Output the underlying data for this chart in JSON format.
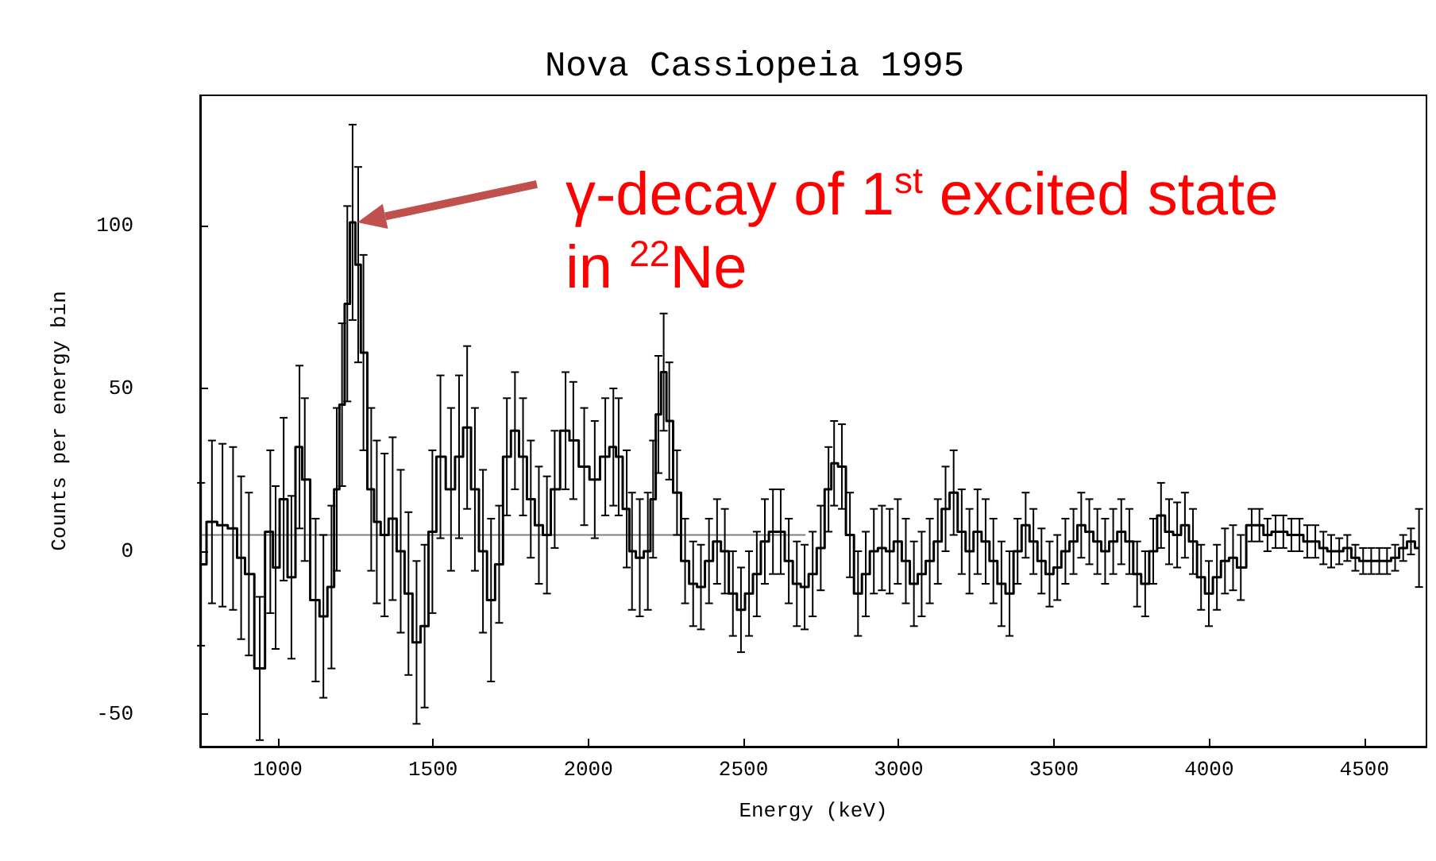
{
  "chart_data": {
    "type": "step",
    "title": "Nova Cassiopeia 1995",
    "xlabel": "Energy (keV)",
    "ylabel": "Counts per energy bin",
    "annotations": [
      "γ-decay of 1$^{st}$ excited state in $^{22}$Ne"
    ],
    "xlim": [
      750,
      4700
    ],
    "ylim": [
      -60,
      140
    ],
    "xticks": [
      1000,
      1500,
      2000,
      2500,
      3000,
      3500,
      4000,
      4500
    ],
    "yticks": [
      -50,
      0,
      50,
      100
    ],
    "marker": "none",
    "series": [
      {
        "color": "#000000",
        "x": [
          753,
          788,
          822,
          856,
          882,
          907,
          942,
          976,
          993,
          1019,
          1044,
          1070,
          1087,
          1122,
          1147,
          1173,
          1190,
          1207,
          1224,
          1241,
          1259,
          1276,
          1301,
          1319,
          1344,
          1370,
          1396,
          1421,
          1447,
          1473,
          1498,
          1524,
          1558,
          1584,
          1610,
          1635,
          1661,
          1687,
          1713,
          1738,
          1764,
          1790,
          1815,
          1841,
          1867,
          1892,
          1927,
          1952,
          1987,
          2021,
          2055,
          2081,
          2098,
          2124,
          2141,
          2166,
          2192,
          2209,
          2226,
          2243,
          2261,
          2286,
          2312,
          2338,
          2363,
          2389,
          2415,
          2440,
          2466,
          2492,
          2518,
          2543,
          2569,
          2595,
          2620,
          2646,
          2672,
          2697,
          2723,
          2749,
          2774,
          2792,
          2817,
          2843,
          2869,
          2894,
          2920,
          2946,
          2971,
          2997,
          3023,
          3049,
          3074,
          3100,
          3126,
          3151,
          3177,
          3203,
          3228,
          3254,
          3280,
          3305,
          3331,
          3357,
          3383,
          3409,
          3434,
          3460,
          3486,
          3511,
          3537,
          3563,
          3588,
          3614,
          3640,
          3665,
          3691,
          3717,
          3743,
          3768,
          3794,
          3820,
          3845,
          3871,
          3897,
          3922,
          3948,
          3974,
          3999,
          4025,
          4051,
          4077,
          4102,
          4137,
          4162,
          4188,
          4214,
          4239,
          4265,
          4291,
          4316,
          4342,
          4368,
          4393,
          4419,
          4445,
          4471,
          4496,
          4522,
          4548,
          4573,
          4599,
          4625,
          4650,
          4676
        ],
        "values": [
          -4,
          9,
          8,
          7,
          -2,
          -7,
          -36,
          6,
          -5,
          16,
          -8,
          32,
          22,
          -15,
          -20,
          -11,
          19,
          45,
          76,
          101,
          88,
          61,
          19,
          9,
          5,
          10,
          0,
          -13,
          -28,
          -23,
          6,
          29,
          19,
          29,
          38,
          19,
          0,
          -15,
          -4,
          29,
          37,
          29,
          16,
          8,
          5,
          19,
          37,
          34,
          26,
          22,
          29,
          32,
          29,
          13,
          0,
          -2,
          0,
          16,
          42,
          55,
          40,
          18,
          -3,
          -10,
          -11,
          -3,
          3,
          0,
          -13,
          -18,
          -13,
          -7,
          3,
          6,
          6,
          -3,
          -10,
          -11,
          -7,
          1,
          19,
          27,
          26,
          5,
          -13,
          -7,
          0,
          1,
          0,
          3,
          -3,
          -10,
          -7,
          -3,
          3,
          13,
          18,
          6,
          0,
          6,
          3,
          -3,
          -10,
          -13,
          0,
          8,
          3,
          -3,
          -7,
          -5,
          0,
          3,
          8,
          6,
          3,
          0,
          3,
          6,
          3,
          -7,
          -10,
          0,
          11,
          6,
          5,
          8,
          3,
          -8,
          -13,
          -8,
          -3,
          -2,
          -5,
          8,
          8,
          5,
          6,
          6,
          5,
          5,
          3,
          3,
          1,
          0,
          0,
          1,
          -2,
          -3,
          -3,
          -3,
          -3,
          -2,
          1,
          3,
          1
        ],
        "errors": [
          25,
          25,
          25,
          25,
          25,
          25,
          22,
          25,
          25,
          25,
          25,
          25,
          25,
          25,
          25,
          25,
          25,
          25,
          30,
          30,
          30,
          30,
          25,
          25,
          25,
          25,
          25,
          25,
          25,
          25,
          25,
          25,
          25,
          25,
          25,
          25,
          25,
          25,
          18,
          18,
          18,
          18,
          18,
          18,
          18,
          18,
          18,
          18,
          18,
          18,
          18,
          18,
          18,
          18,
          18,
          18,
          18,
          18,
          18,
          18,
          18,
          13,
          13,
          13,
          13,
          13,
          13,
          13,
          13,
          13,
          13,
          13,
          13,
          13,
          13,
          13,
          13,
          13,
          13,
          13,
          13,
          13,
          13,
          13,
          13,
          13,
          13,
          13,
          13,
          13,
          13,
          13,
          13,
          13,
          13,
          13,
          13,
          13,
          13,
          13,
          13,
          13,
          13,
          13,
          10,
          10,
          10,
          10,
          10,
          10,
          10,
          10,
          10,
          10,
          10,
          10,
          10,
          10,
          10,
          10,
          10,
          10,
          10,
          10,
          10,
          10,
          10,
          10,
          10,
          10,
          10,
          10,
          10,
          5,
          5,
          5,
          5,
          5,
          5,
          5,
          5,
          5,
          5,
          5,
          4,
          4,
          4,
          4,
          4,
          4,
          4,
          4,
          4,
          4,
          12
        ]
      },
      {
        "type": "line",
        "color": "#808080",
        "x": [
          750,
          2700
        ],
        "values": [
          5,
          5
        ]
      }
    ]
  }
}
